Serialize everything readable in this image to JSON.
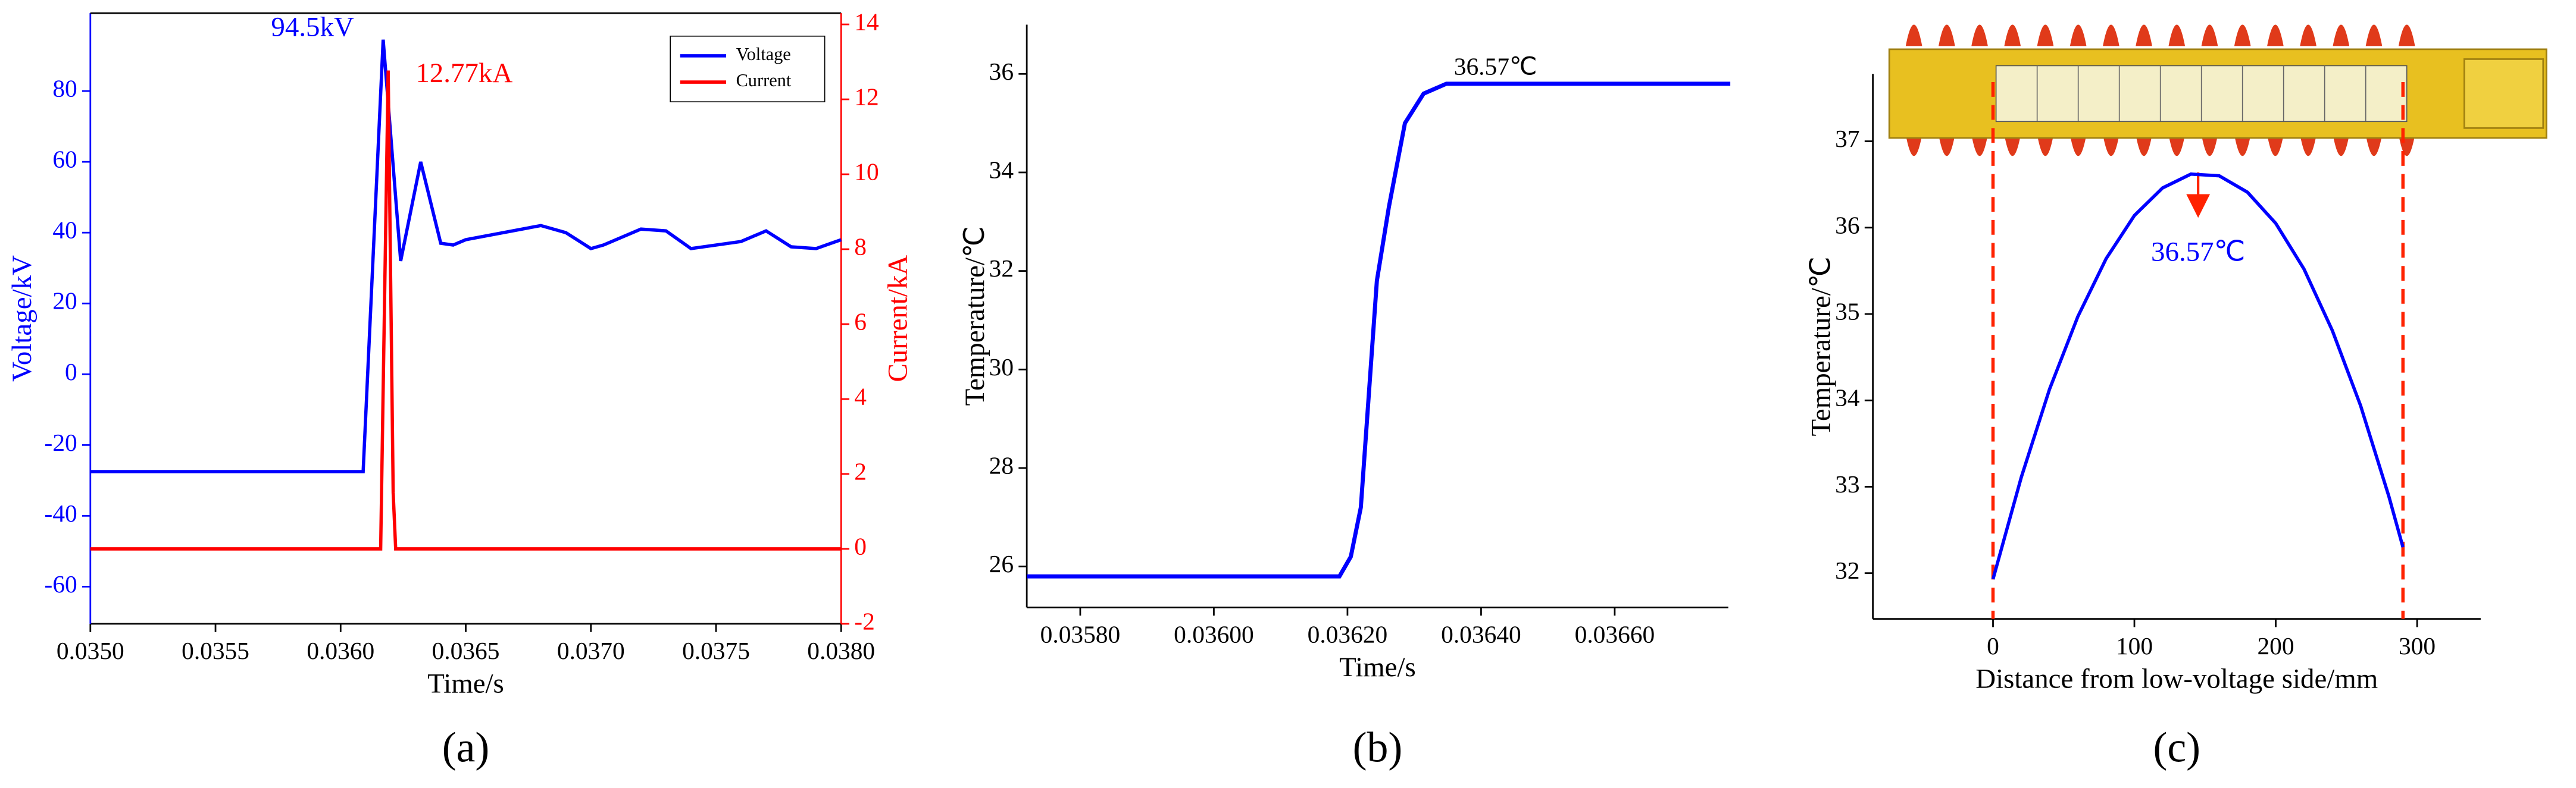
{
  "chart_data": [
    {
      "type": "line",
      "panel_label": "(a)",
      "xlabel": "Time/s",
      "ylabel": "Voltage/kV",
      "y2label": "Current/kA",
      "xlim": [
        0.035,
        0.038
      ],
      "ylim": [
        -70.5,
        102
      ],
      "y2lim": [
        -2,
        14.3
      ],
      "xticks": [
        {
          "value": 0.035,
          "label": "0.0350"
        },
        {
          "value": 0.0355,
          "label": "0.0355"
        },
        {
          "value": 0.036,
          "label": "0.0360"
        },
        {
          "value": 0.0365,
          "label": "0.0365"
        },
        {
          "value": 0.037,
          "label": "0.0370"
        },
        {
          "value": 0.0375,
          "label": "0.0375"
        },
        {
          "value": 0.038,
          "label": "0.0380"
        }
      ],
      "yticks": [
        -60,
        -40,
        -20,
        0,
        20,
        40,
        60,
        80
      ],
      "y2ticks": [
        -2,
        0,
        2,
        4,
        6,
        8,
        10,
        12,
        14
      ],
      "frame": true,
      "legend": "upper right",
      "annotations": [
        "94.5kV",
        "12.77kA"
      ],
      "series": [
        {
          "name": "Voltage",
          "color": "#0000ff",
          "x": [
            0.035,
            0.036,
            0.03609,
            0.03617,
            0.03624,
            0.03632,
            0.0364,
            0.03645,
            0.0365,
            0.0368,
            0.0369,
            0.037,
            0.03705,
            0.0372,
            0.0373,
            0.0374,
            0.0376,
            0.0377,
            0.0378,
            0.0379,
            0.038
          ],
          "values": [
            -27.5,
            -27.5,
            -27.5,
            94.5,
            32,
            60,
            37,
            36.5,
            38,
            42,
            40,
            35.5,
            36.5,
            41,
            40.5,
            35.5,
            37.5,
            40.5,
            36,
            35.5,
            38
          ]
        },
        {
          "name": "Current",
          "color": "#ff0000",
          "axis": "y2",
          "x": [
            0.035,
            0.03616,
            0.03619,
            0.03621,
            0.03622,
            0.038
          ],
          "values": [
            0,
            0,
            12.77,
            1.5,
            0,
            0
          ]
        }
      ]
    },
    {
      "type": "line",
      "panel_label": "(b)",
      "xlabel": "Time/s",
      "ylabel": "Temperature/℃",
      "xlim": [
        0.03572,
        0.03677
      ],
      "ylim": [
        25.17,
        37
      ],
      "xticks": [
        {
          "value": 0.0358,
          "label": "0.03580"
        },
        {
          "value": 0.036,
          "label": "0.03600"
        },
        {
          "value": 0.0362,
          "label": "0.03620"
        },
        {
          "value": 0.0364,
          "label": "0.03640"
        },
        {
          "value": 0.0366,
          "label": "0.03660"
        }
      ],
      "yticks": [
        26,
        28,
        30,
        32,
        34,
        36
      ],
      "annotations": [
        "36.57℃"
      ],
      "series": [
        {
          "color": "#0000ff",
          "x": [
            0.03572,
            0.036188,
            0.036205,
            0.03622,
            0.036232,
            0.036244,
            0.036262,
            0.036286,
            0.036314,
            0.036348,
            0.036773
          ],
          "values": [
            25.8,
            25.8,
            26.2,
            27.2,
            29.5,
            31.8,
            33.3,
            35.0,
            35.6,
            35.8,
            35.8
          ]
        }
      ]
    },
    {
      "type": "line",
      "panel_label": "(c)",
      "xlabel": "Distance from low-voltage side/mm",
      "ylabel": "Temperature/℃",
      "xlim": [
        -85,
        345
      ],
      "ylim": [
        31.47,
        37.78
      ],
      "xticks": [
        0,
        100,
        200,
        300
      ],
      "yticks": [
        32,
        33,
        34,
        35,
        36,
        37
      ],
      "vlines": [
        0,
        290
      ],
      "vline_color": "#ff2200",
      "annotations": [
        "36.57℃"
      ],
      "series": [
        {
          "color": "#0000ff",
          "x": [
            0,
            20,
            40,
            60,
            80,
            100,
            120,
            140,
            160,
            180,
            200,
            220,
            240,
            260,
            280,
            290
          ],
          "values": [
            31.93,
            33.11,
            34.13,
            34.97,
            35.64,
            36.14,
            36.46,
            36.62,
            36.6,
            36.41,
            36.05,
            35.52,
            34.81,
            33.94,
            32.89,
            32.3
          ]
        }
      ]
    }
  ]
}
